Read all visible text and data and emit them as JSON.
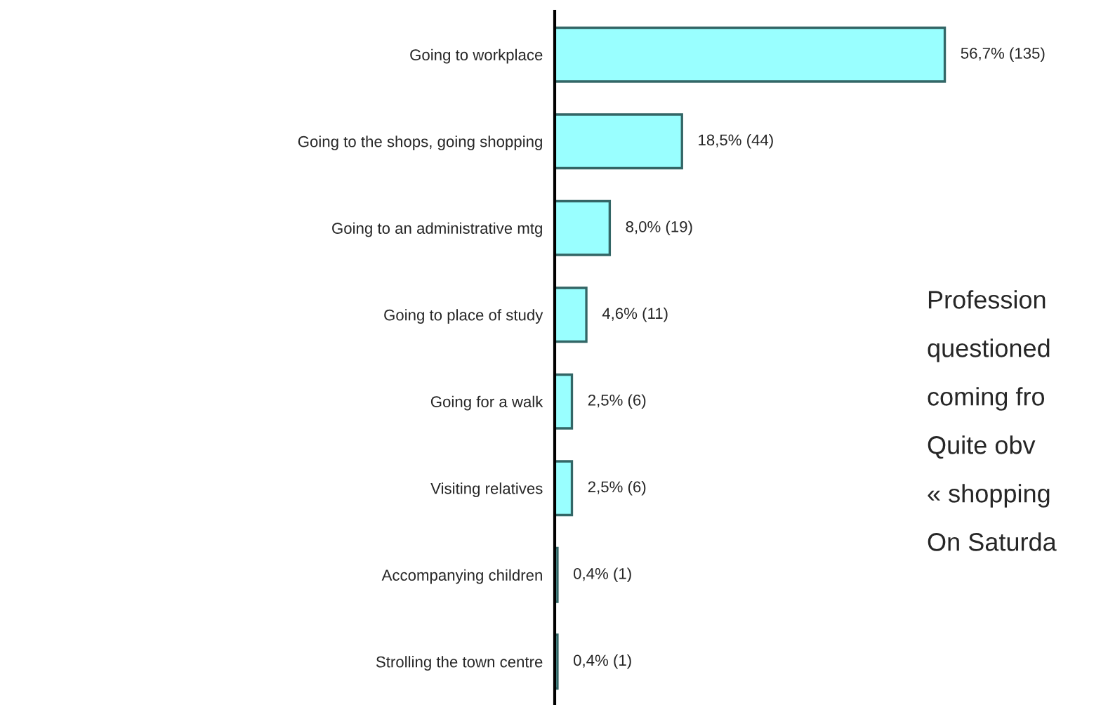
{
  "chart_data": {
    "type": "bar",
    "orientation": "horizontal",
    "categories": [
      "Going to workplace",
      "Going to the shops, going shopping",
      "Going to an administrative mtg",
      "Going to place of study",
      "Going for a walk",
      "Visiting relatives",
      "Accompanying children",
      "Strolling the town centre"
    ],
    "values": [
      56.7,
      18.5,
      8.0,
      4.6,
      2.5,
      2.5,
      0.4,
      0.4
    ],
    "value_labels": [
      "56,7% (135)",
      "18,5% (44)",
      "8,0% (19)",
      "4,6% (11)",
      "2,5% (6)",
      "2,5% (6)",
      "0,4% (1)",
      "0,4% (1)"
    ],
    "color": "#99ffff",
    "grid": false,
    "legend": false,
    "annotations": [
      "Profession",
      "questioned",
      "coming fro",
      "Quite obv",
      "« shopping",
      "On Saturda"
    ]
  }
}
